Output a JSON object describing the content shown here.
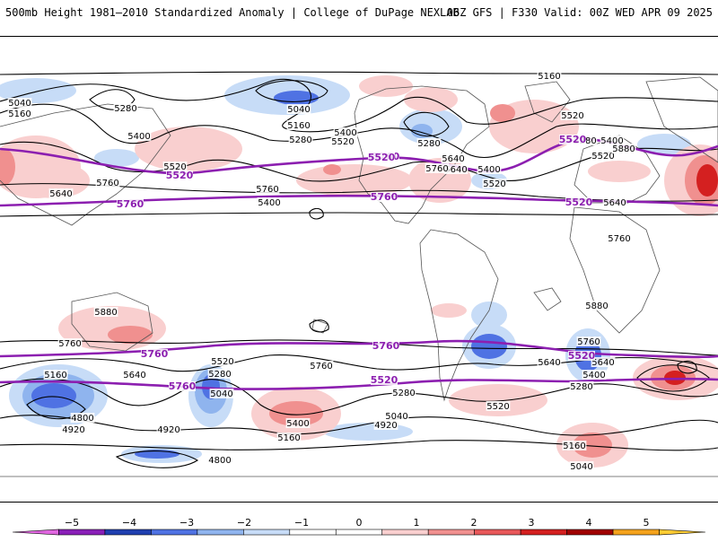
{
  "header": {
    "title_left": "500mb Height 1981–2010 Standardized Anomaly | College of DuPage NEXLAB",
    "title_right": "06Z GFS | F330 Valid: 00Z WED APR 09 2025"
  },
  "map": {
    "contour_labels": {
      "nh": [
        "5160",
        "5040",
        "5160",
        "5280",
        "5400",
        "5040",
        "5160",
        "5280",
        "5400",
        "5520",
        "5280",
        "5400",
        "5520",
        "5520",
        "5640",
        "5760",
        "5640",
        "5760",
        "5400",
        "5520",
        "5280",
        "5400",
        "5520",
        "5640",
        "5760",
        "5640",
        "5760",
        "5880"
      ],
      "sh": [
        "5880",
        "5760",
        "5640",
        "5160",
        "4800",
        "4920",
        "5520",
        "5280",
        "5040",
        "5760",
        "5640",
        "5400",
        "5160",
        "5040",
        "4920",
        "4920",
        "4800",
        "5280",
        "5520",
        "5160",
        "5040",
        "5880",
        "5760",
        "5640",
        "5400",
        "5280"
      ]
    },
    "purple_labels": [
      "5520",
      "5760",
      "5520",
      "5760",
      "5520",
      "5760",
      "5520",
      "5760",
      "5760",
      "5520",
      "5520",
      "5760"
    ],
    "colors": {
      "purple_contour": "#8c1fb0",
      "neg_light": "#c7dcf7",
      "neg_mid": "#8fb4ee",
      "neg_strong": "#4f72e3",
      "pos_light": "#f9cfcf",
      "pos_mid": "#f0908f",
      "pos_strong": "#d42020"
    }
  },
  "colorbar": {
    "ticks": [
      "−5",
      "−4",
      "−3",
      "−2",
      "−1",
      "0",
      "1",
      "2",
      "3",
      "4",
      "5"
    ],
    "colors": [
      "#e066e0",
      "#8a1fb8",
      "#1f3fb0",
      "#4f72e3",
      "#8fb4ee",
      "#c7dcf7",
      "#ffffff",
      "#ffffff",
      "#f9cfcf",
      "#f0908f",
      "#e8585a",
      "#d42020",
      "#a00000",
      "#f4a21c",
      "#ffcc33"
    ]
  }
}
